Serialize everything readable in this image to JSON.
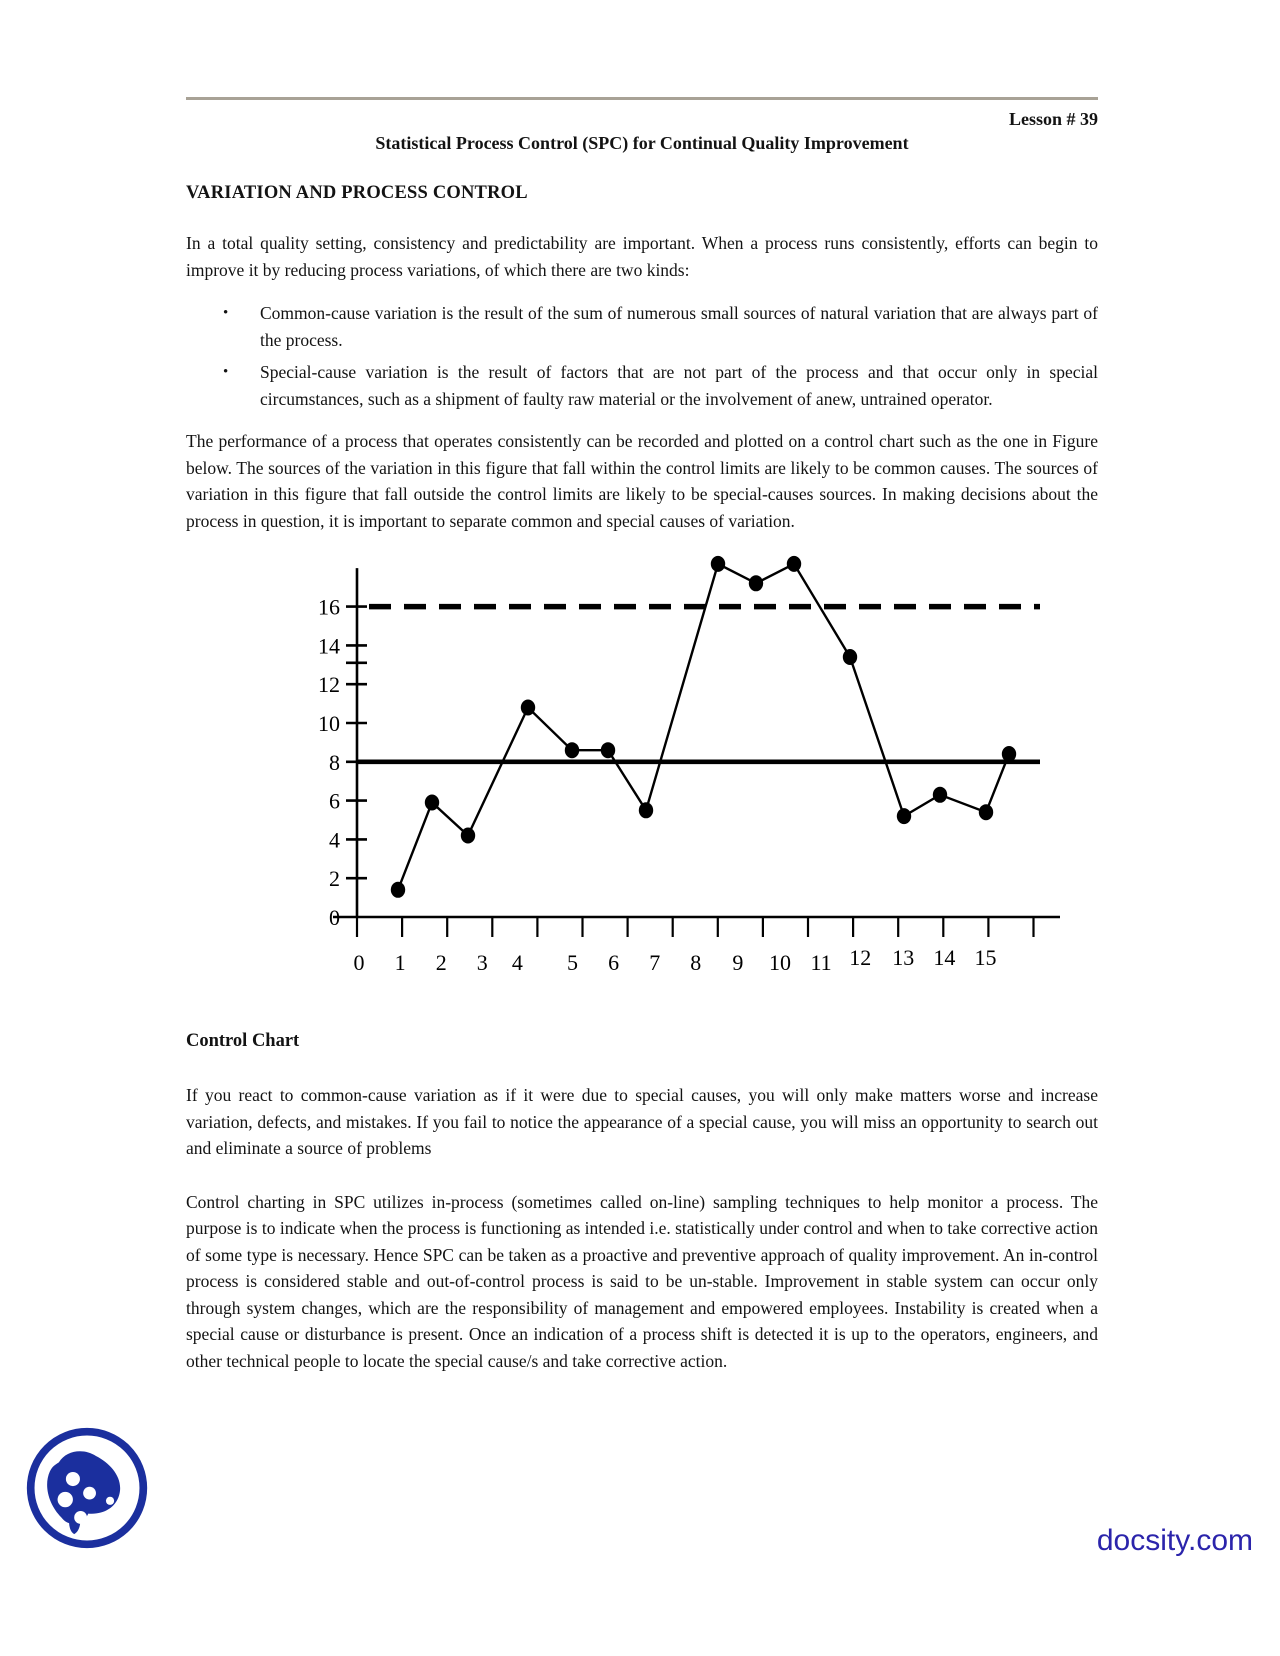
{
  "page": {
    "lesson": "Lesson # 39",
    "title": "Statistical Process Control (SPC) for Continual Quality Improvement",
    "section_heading": "VARIATION AND PROCESS CONTROL",
    "para1": "In a total quality setting, consistency and predictability are important. When a process runs consistently, efforts can begin to improve it by reducing process variations, of which there are two kinds:",
    "bullet_glyph": "•",
    "bullets": [
      "Common-cause variation is the result of the sum of numerous small sources of natural variation that are always part of the process.",
      "Special-cause variation is the result of factors that are not part of the process and that occur only in special circumstances, such as a shipment of faulty raw material or the involvement of anew, untrained operator."
    ],
    "para2": "The performance of a process that operates consistently can be recorded and plotted on a control chart such as the one in Figure below. The sources of the variation in this figure that fall within the control limits are likely to be common causes. The sources of variation in this figure that fall outside the control limits are likely to be special-causes sources. In making decisions about the process in question, it is important to separate common and special causes of variation.",
    "chart_heading": "Control Chart",
    "para3": "If you react to common-cause variation as if it were due to special causes, you will only make matters worse and increase variation, defects, and mistakes. If you fail to notice the appearance of a special cause, you will miss an opportunity to search out and eliminate a source of problems",
    "para4": "Control charting in SPC utilizes in-process (sometimes called on-line) sampling techniques to help monitor a process. The purpose is to indicate when the process is functioning as intended i.e. statistically under control and when to take corrective action of some type is necessary. Hence SPC can be taken as a proactive and preventive approach of quality improvement. An in-control process is considered stable and out-of-control process is said to be un-stable. Improvement in stable system can occur only through system changes, which are the responsibility of management and empowered employees. Instability is created when a special cause or disturbance is present. Once an indication of a process shift is detected it is up to the operators, engineers, and other technical people to locate the special cause/s and take corrective action.",
    "footer_brand": "docsity.com"
  },
  "colors": {
    "ink": "#000000",
    "rule_gray": "#a8a296",
    "docsity_blue": "#1b2f9e",
    "brand_text_blue": "#2b24ab"
  },
  "chart_data": {
    "type": "line",
    "title": "",
    "xlabel": "",
    "ylabel": "",
    "x": [
      1,
      2,
      3,
      4,
      5,
      6,
      7,
      8,
      9,
      10,
      11,
      12,
      13,
      14,
      15
    ],
    "values": [
      1.4,
      5.9,
      4.2,
      10.8,
      8.6,
      8.6,
      5.5,
      18.2,
      17.2,
      18.2,
      13.4,
      5.2,
      6.3,
      5.4,
      8.4
    ],
    "center_line": 8,
    "upper_control_limit": 16,
    "x_tick_labels": [
      "0",
      "1",
      "2",
      "3",
      "4",
      "5",
      "6",
      "7",
      "8",
      "9",
      "10",
      "11",
      "12",
      "13",
      "14",
      "15"
    ],
    "y_tick_labels": [
      16,
      14,
      12,
      10,
      8,
      6,
      4,
      2,
      0
    ],
    "y_tick_marks": [
      2,
      4,
      6,
      8,
      10,
      12,
      14,
      16
    ],
    "y_extra_tick": 13.1,
    "ylim": [
      0,
      18.6
    ],
    "grid": false,
    "legend": "none",
    "marker": "filled-circle",
    "line_color": "#000000"
  }
}
